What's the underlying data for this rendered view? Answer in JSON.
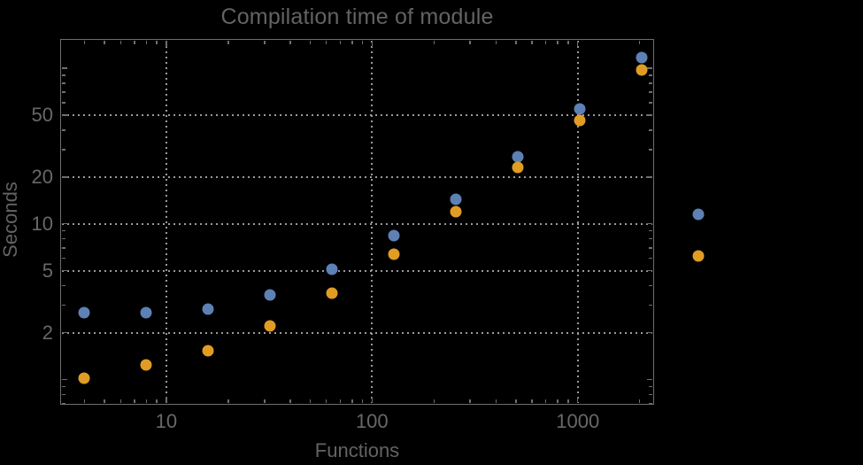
{
  "chart_data": {
    "type": "scatter",
    "title": "Compilation time of module",
    "xlabel": "Functions",
    "ylabel": "Seconds",
    "x_scale": "log",
    "y_scale": "log",
    "xlim": [
      3.05,
      2350
    ],
    "ylim": [
      0.688,
      154
    ],
    "x": [
      4,
      8,
      16,
      32,
      64,
      128,
      256,
      512,
      1024,
      2048
    ],
    "series": [
      {
        "name": "series-1-blue",
        "color": "#5E81B5",
        "values": [
          2.7,
          2.7,
          2.85,
          3.5,
          5.1,
          8.4,
          14.4,
          27,
          55,
          117
        ]
      },
      {
        "name": "series-2-orange",
        "color": "#E19C24",
        "values": [
          1.02,
          1.24,
          1.53,
          2.2,
          3.6,
          6.4,
          11.9,
          23,
          46,
          97
        ]
      }
    ],
    "grid_style": "dotted",
    "grid_color": "#9a9a9a",
    "frame_color": "#6e6e6e",
    "text_color": "#646464",
    "background_color": "#000000",
    "x_gridlines": [
      10,
      100,
      1000
    ],
    "y_gridlines": [
      2,
      5,
      10,
      20,
      50
    ],
    "x_ticks_major": [
      {
        "value": 10,
        "label": "10"
      },
      {
        "value": 100,
        "label": "100"
      },
      {
        "value": 1000,
        "label": "1000"
      }
    ],
    "y_ticks_major": [
      {
        "value": 50,
        "label": "50"
      },
      {
        "value": 20,
        "label": "20"
      },
      {
        "value": 10,
        "label": "10"
      },
      {
        "value": 5,
        "label": "5"
      },
      {
        "value": 2,
        "label": "2"
      }
    ],
    "y_ticks_unlabeled": [
      1,
      100
    ],
    "x_ticks_minor": [
      4,
      5,
      6,
      7,
      8,
      9,
      20,
      30,
      40,
      50,
      60,
      70,
      80,
      90,
      200,
      300,
      400,
      500,
      600,
      700,
      800,
      900,
      2000
    ],
    "y_ticks_minor": [
      0.7,
      0.8,
      0.9,
      3,
      4,
      6,
      7,
      8,
      9,
      30,
      40,
      60,
      70,
      80,
      90
    ],
    "legend_position": "right-outside",
    "legend_markers": [
      {
        "series": "series-1-blue",
        "color": "#5E81B5"
      },
      {
        "series": "series-2-orange",
        "color": "#E19C24"
      }
    ]
  }
}
